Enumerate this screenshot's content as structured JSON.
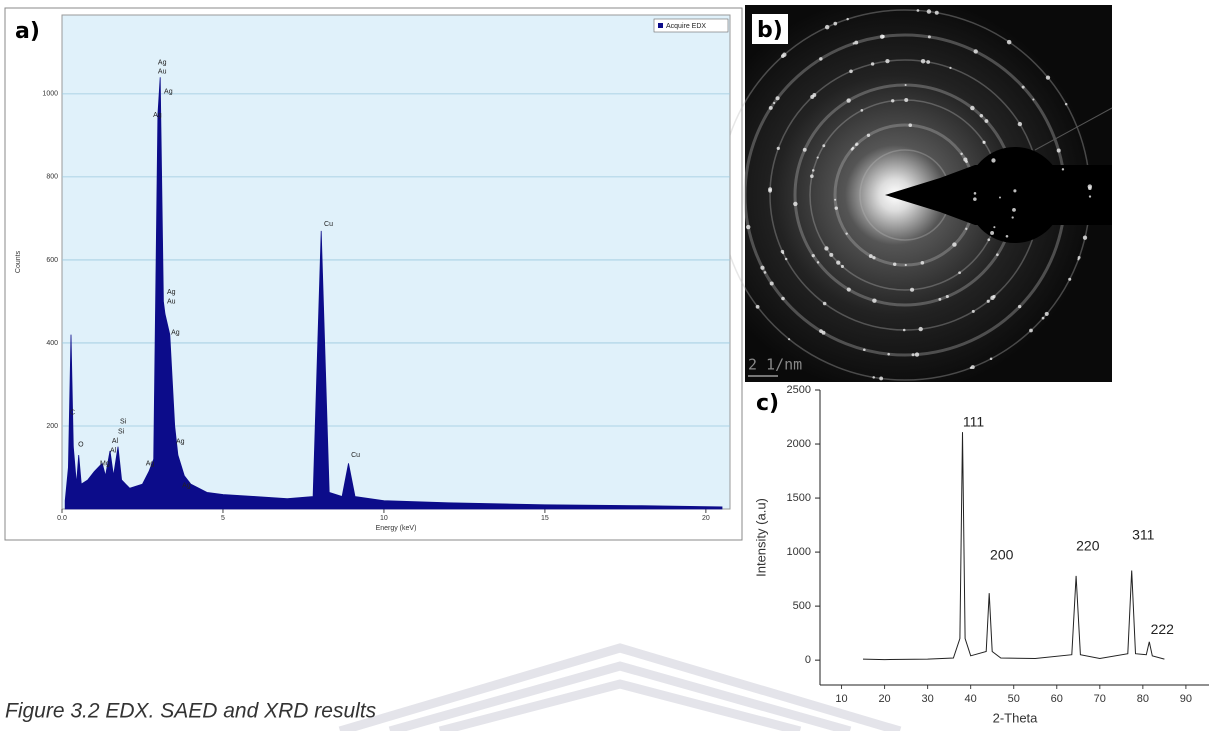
{
  "panels": {
    "a": "a)",
    "b": "b)",
    "c": "c)"
  },
  "saed": {
    "scale_bar": "2 1/nm"
  },
  "caption": "Figure 3.2 EDX. SAED and XRD results",
  "chart_data": [
    {
      "type": "area",
      "x_label": "Energy (keV)",
      "y_label": "Counts",
      "x": [
        0.1,
        0.2,
        0.28,
        0.35,
        0.45,
        0.52,
        0.6,
        0.8,
        1.0,
        1.25,
        1.35,
        1.49,
        1.6,
        1.74,
        1.85,
        2.1,
        2.5,
        2.7,
        2.85,
        2.98,
        3.05,
        3.15,
        3.2,
        3.35,
        3.5,
        3.6,
        3.8,
        4.0,
        4.5,
        5,
        6,
        7,
        7.8,
        8.05,
        8.3,
        8.7,
        8.9,
        9.1,
        10,
        12,
        15,
        18,
        20.5
      ],
      "series": [
        {
          "name": "Acquire EDX",
          "color": "#0c0c8a",
          "values": [
            20,
            100,
            420,
            150,
            60,
            130,
            60,
            70,
            90,
            110,
            80,
            140,
            80,
            150,
            70,
            50,
            60,
            90,
            120,
            950,
            1040,
            500,
            470,
            420,
            200,
            130,
            80,
            60,
            40,
            35,
            30,
            25,
            30,
            670,
            40,
            30,
            110,
            30,
            20,
            15,
            10,
            8,
            5
          ]
        }
      ],
      "xlim": [
        0,
        20.75
      ],
      "ylim": [
        0,
        1190
      ],
      "xticks": [
        {
          "value": 0,
          "label": "0.0"
        },
        5,
        10,
        15,
        20
      ],
      "yticks": [
        200,
        400,
        600,
        800,
        1000
      ],
      "grid": true,
      "legend": "upper right",
      "annotations": [
        {
          "text": "C",
          "x": 0.25,
          "y": 232
        },
        {
          "text": "O",
          "x": 0.5,
          "y": 155
        },
        {
          "text": "Mg",
          "x": 1.18,
          "y": 109
        },
        {
          "text": "Al",
          "x": 1.55,
          "y": 164
        },
        {
          "text": "Al",
          "x": 1.49,
          "y": 140
        },
        {
          "text": "Si",
          "x": 1.8,
          "y": 210
        },
        {
          "text": "Si",
          "x": 1.74,
          "y": 186
        },
        {
          "text": "Ag",
          "x": 2.6,
          "y": 109
        },
        {
          "text": "Ag",
          "x": 2.98,
          "y": 1075
        },
        {
          "text": "Au",
          "x": 2.98,
          "y": 1053
        },
        {
          "text": "Ag",
          "x": 3.17,
          "y": 1005
        },
        {
          "text": "Ag",
          "x": 2.83,
          "y": 949
        },
        {
          "text": "Ag",
          "x": 3.26,
          "y": 522
        },
        {
          "text": "Au",
          "x": 3.26,
          "y": 500
        },
        {
          "text": "Ag",
          "x": 3.39,
          "y": 425
        },
        {
          "text": "Ag",
          "x": 3.54,
          "y": 162
        },
        {
          "text": "Ag",
          "x": 3.73,
          "y": 56
        },
        {
          "text": "Cu",
          "x": 8.14,
          "y": 686
        },
        {
          "text": "Cu",
          "x": 8.98,
          "y": 130
        }
      ]
    },
    {
      "type": "line",
      "x_label": "2-Theta",
      "y_label": "Intensity (a.u)",
      "x": [
        15,
        20,
        30,
        36,
        37.5,
        38.1,
        38.7,
        40,
        43.6,
        44.3,
        45,
        47,
        55,
        63.5,
        64.5,
        65.5,
        70,
        76.5,
        77.4,
        78.3,
        80.8,
        81.5,
        82.2,
        85
      ],
      "values": [
        10,
        5,
        10,
        20,
        200,
        2110,
        200,
        40,
        80,
        620,
        80,
        20,
        15,
        50,
        780,
        50,
        15,
        60,
        830,
        60,
        50,
        170,
        40,
        10
      ],
      "color": "#222222",
      "xlim": [
        5,
        95.6
      ],
      "ylim": [
        -230,
        2500
      ],
      "xticks": [
        10,
        20,
        30,
        40,
        50,
        60,
        70,
        80,
        90
      ],
      "yticks": [
        0,
        500,
        1000,
        1500,
        2000,
        2500
      ],
      "grid": false,
      "annotations": [
        {
          "text": "111",
          "x": 38.2,
          "y": 2195
        },
        {
          "text": "200",
          "x": 44.5,
          "y": 964
        },
        {
          "text": "220",
          "x": 64.5,
          "y": 1050
        },
        {
          "text": "311",
          "x": 77.5,
          "y": 1150
        },
        {
          "text": "222",
          "x": 81.8,
          "y": 277
        }
      ]
    }
  ]
}
